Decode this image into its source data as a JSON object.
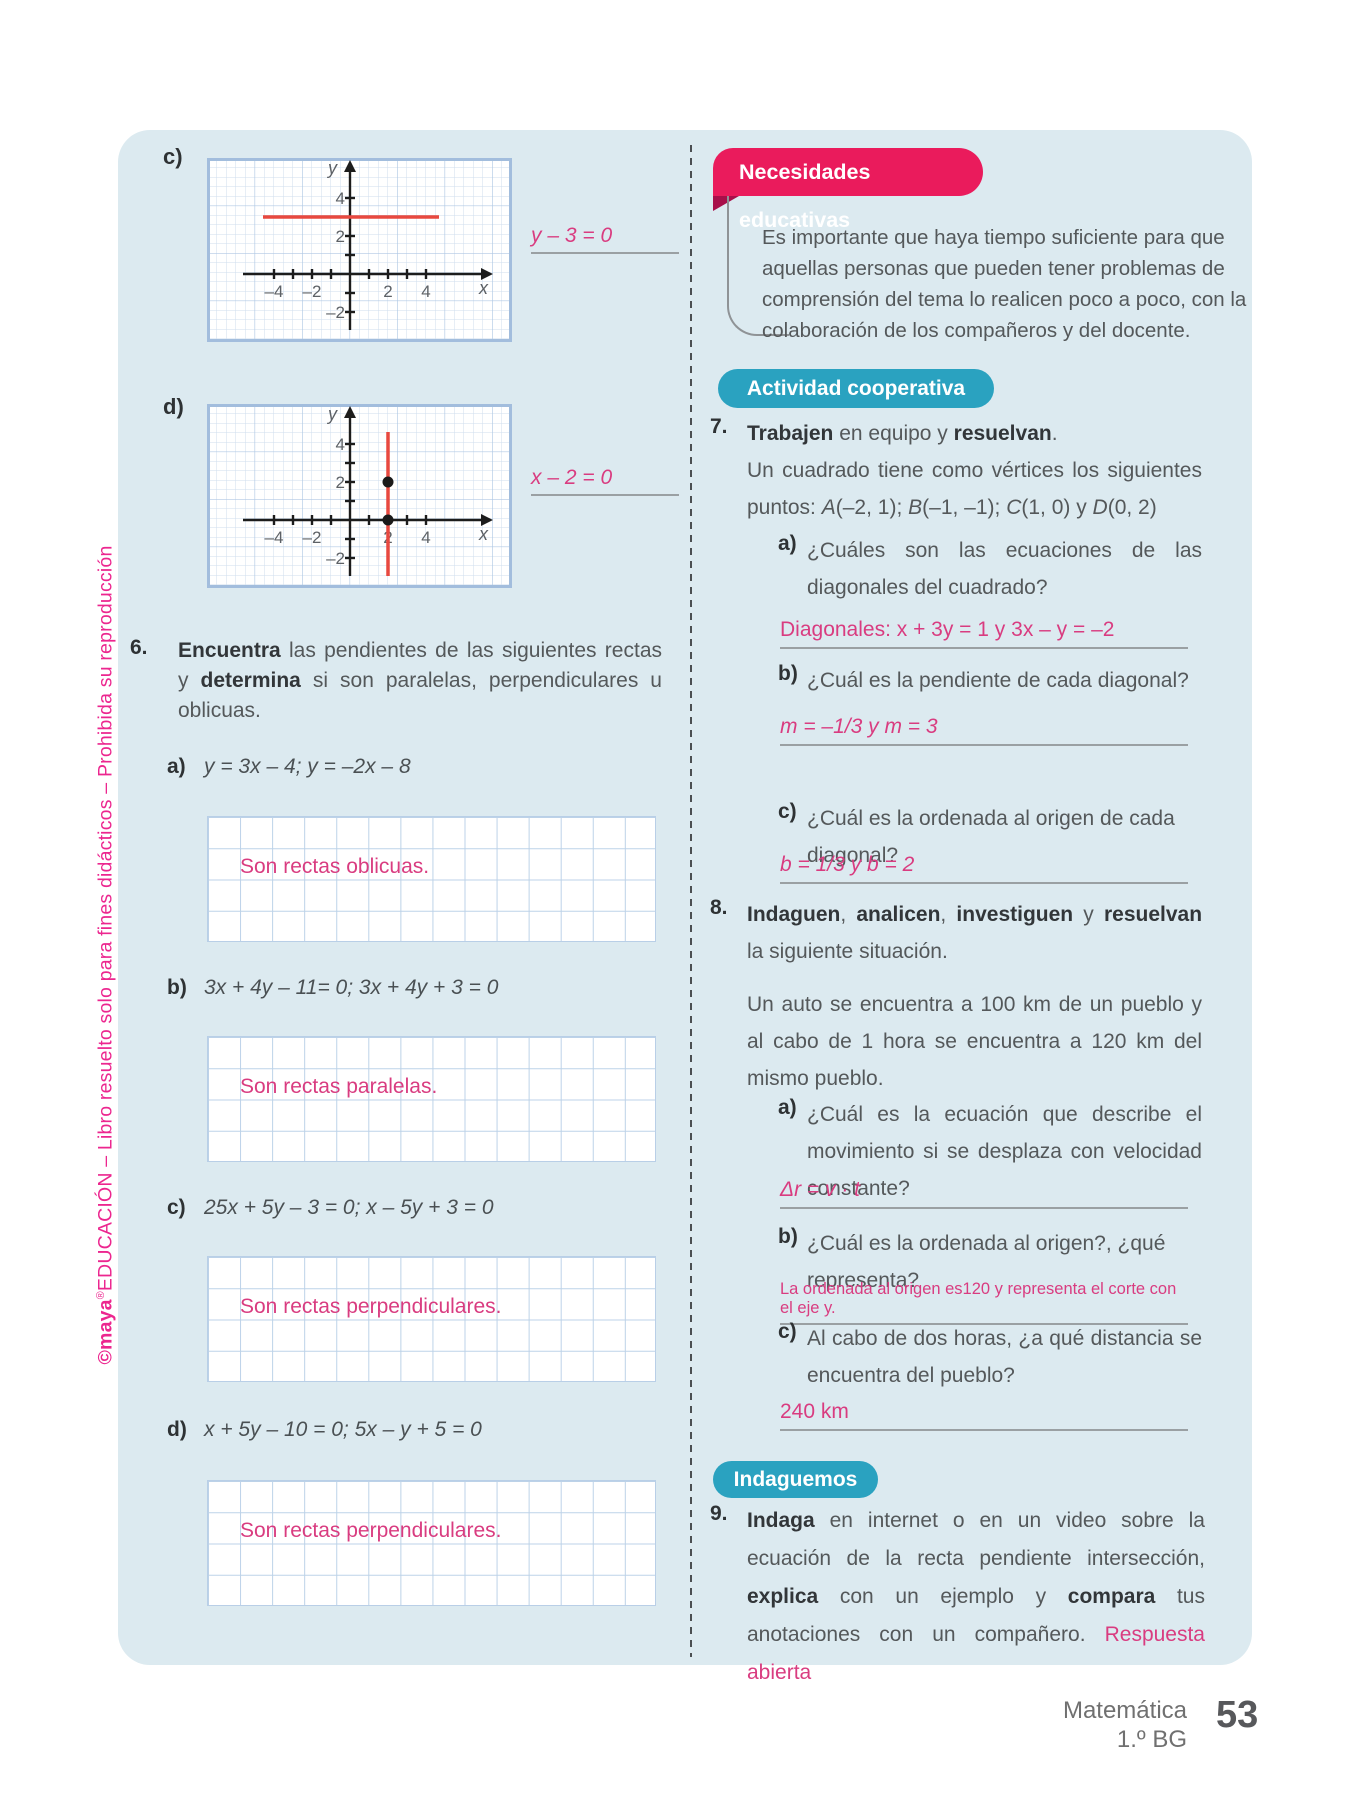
{
  "colors": {
    "panel_bg": "#dceaf0",
    "banner_pink": "#ea1b5c",
    "banner_pink_dark": "#a80f4a",
    "banner_teal": "#2aa2c0",
    "answer_pink": "#d93c80",
    "side_pink": "#ec268f",
    "red_line": "#e8483f",
    "grid_frame": "#a2bddd",
    "text_dark": "#54585a",
    "underline_gray": "#9aa0a3"
  },
  "side_note": [
    {
      "t": "©maya",
      "b": true
    },
    {
      "t": "®",
      "sup": true
    },
    {
      "t": "EDUCACIÓN – Libro resuelto solo para fines didácticos – Prohibida su reproducción"
    }
  ],
  "left": {
    "graph_c": {
      "label": "c)",
      "equation": "y – 3 = 0",
      "axis_x": "x",
      "axis_y": "y",
      "ticks_y": [
        "4",
        "2",
        "–2"
      ],
      "ticks_x": [
        "–4",
        "–2",
        "2",
        "4"
      ]
    },
    "graph_d": {
      "label": "d)",
      "equation": "x – 2 = 0",
      "axis_x": "x",
      "axis_y": "y",
      "ticks_y": [
        "4",
        "2",
        "–2"
      ],
      "ticks_x": [
        "–4",
        "–2",
        "2",
        "4"
      ]
    },
    "ex6": {
      "number": "6.",
      "intro": [
        {
          "t": "Encuentra",
          "b": true
        },
        {
          "t": " las pendientes de las siguientes rectas y "
        },
        {
          "t": "determina",
          "b": true
        },
        {
          "t": " si son paralelas, perpendiculares u oblicuas."
        }
      ],
      "items": [
        {
          "label": "a)",
          "equation": "y = 3x – 4; y = –2x – 8",
          "answer": "Son rectas oblicuas."
        },
        {
          "label": "b)",
          "equation": "3x + 4y – 11= 0; 3x + 4y + 3 = 0",
          "answer": "Son rectas paralelas."
        },
        {
          "label": "c)",
          "equation": "25x + 5y – 3 = 0; x – 5y + 3 = 0",
          "answer": "Son rectas perpendiculares."
        },
        {
          "label": "d)",
          "equation": "x + 5y – 10 = 0; 5x – y + 5 = 0",
          "answer": "Son rectas perpendiculares."
        }
      ]
    }
  },
  "right": {
    "needs_box": {
      "title": "Necesidades educativas",
      "body": "Es importante que haya tiempo suficiente para que aquellas personas que pueden tener problemas de comprensión del tema lo realicen poco a poco, con la colaboración de los compañeros y del docente."
    },
    "coop_banner": "Actividad cooperativa",
    "ex7": {
      "number": "7.",
      "intro": [
        {
          "t": "Trabajen",
          "b": true
        },
        {
          "t": " en equipo y "
        },
        {
          "t": "resuelvan",
          "b": true
        },
        {
          "t": "."
        }
      ],
      "body": [
        {
          "t": "Un cuadrado tiene como vértices los siguientes puntos: "
        },
        {
          "t": "A",
          "i": true
        },
        {
          "t": "(–2, 1); "
        },
        {
          "t": "B",
          "i": true
        },
        {
          "t": "(–1, –1); "
        },
        {
          "t": "C",
          "i": true
        },
        {
          "t": "(1, 0) y "
        },
        {
          "t": "D",
          "i": true
        },
        {
          "t": "(0, 2)"
        }
      ],
      "a": {
        "label": "a)",
        "text": "¿Cuáles son las ecuaciones de las diagonales del cuadrado?",
        "answer": "Diagonales: x + 3y = 1 y 3x – y = –2"
      },
      "b": {
        "label": "b)",
        "text": "¿Cuál es la pendiente de cada diagonal?",
        "answer": "m = –1/3 y m = 3"
      },
      "c": {
        "label": "c)",
        "text": "¿Cuál es la ordenada al origen de cada diagonal?",
        "answer": "b = 1/3 y b = 2"
      }
    },
    "ex8": {
      "number": "8.",
      "intro": [
        {
          "t": "Indaguen",
          "b": true
        },
        {
          "t": ", "
        },
        {
          "t": "analicen",
          "b": true
        },
        {
          "t": ", "
        },
        {
          "t": "investiguen",
          "b": true
        },
        {
          "t": " y "
        },
        {
          "t": "resuelvan",
          "b": true
        },
        {
          "t": " la siguiente situación."
        }
      ],
      "body": "Un auto se encuentra a 100 km de un pueblo y al cabo de 1 hora se encuentra a 120 km del mismo pueblo.",
      "a": {
        "label": "a)",
        "text": "¿Cuál es la ecuación que describe el movimiento si se desplaza con velocidad constante?",
        "answer": "Δr = v · t"
      },
      "b": {
        "label": "b)",
        "text": "¿Cuál es la ordenada al origen?, ¿qué representa?",
        "answer": "La ordenada al origen es120 y representa el corte con el eje y."
      },
      "c": {
        "label": "c)",
        "text": "Al cabo de dos horas, ¿a qué distancia se encuentra del pueblo?",
        "answer": "240 km"
      }
    },
    "indaguemos_banner": "Indaguemos",
    "ex9": {
      "number": "9.",
      "body": [
        {
          "t": "Indaga",
          "b": true
        },
        {
          "t": " en internet o en un video sobre la ecuación de la recta pendiente intersección, "
        },
        {
          "t": "explica",
          "b": true
        },
        {
          "t": " con un ejemplo y "
        },
        {
          "t": "compara",
          "b": true
        },
        {
          "t": " tus anotaciones con un compañero. "
        },
        {
          "t": "Respuesta abierta",
          "pink": true
        }
      ]
    }
  },
  "footer": {
    "subject": "Matemática",
    "grade": "1.º BG",
    "page_number": "53"
  }
}
